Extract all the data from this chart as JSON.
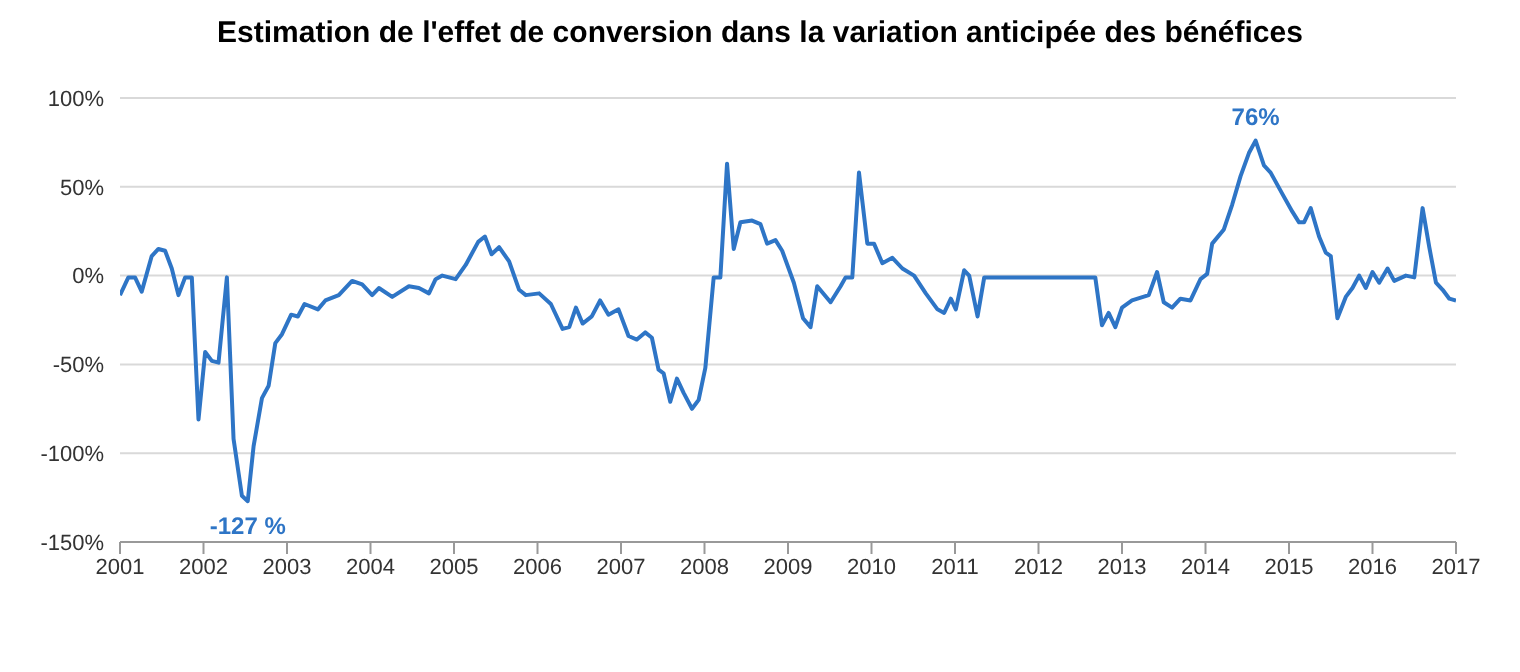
{
  "chart_data": {
    "type": "line",
    "title": "Estimation de l'effet de conversion dans la variation anticipée des bénéfices",
    "x": [
      2001.0,
      2001.1,
      2001.18,
      2001.26,
      2001.38,
      2001.46,
      2001.54,
      2001.62,
      2001.7,
      2001.78,
      2001.86,
      2001.94,
      2002.02,
      2002.1,
      2002.18,
      2002.28,
      2002.36,
      2002.46,
      2002.53,
      2002.6,
      2002.7,
      2002.78,
      2002.86,
      2002.94,
      2003.05,
      2003.13,
      2003.21,
      2003.37,
      2003.46,
      2003.62,
      2003.78,
      2003.9,
      2004.02,
      2004.1,
      2004.26,
      2004.46,
      2004.58,
      2004.7,
      2004.78,
      2004.86,
      2005.02,
      2005.14,
      2005.29,
      2005.37,
      2005.45,
      2005.54,
      2005.66,
      2005.78,
      2005.86,
      2006.02,
      2006.16,
      2006.3,
      2006.38,
      2006.46,
      2006.54,
      2006.65,
      2006.75,
      2006.85,
      2006.97,
      2007.09,
      2007.19,
      2007.29,
      2007.37,
      2007.45,
      2007.51,
      2007.59,
      2007.67,
      2007.75,
      2007.85,
      2007.93,
      2008.01,
      2008.11,
      2008.19,
      2008.27,
      2008.35,
      2008.43,
      2008.57,
      2008.67,
      2008.75,
      2008.85,
      2008.93,
      2009.07,
      2009.18,
      2009.27,
      2009.35,
      2009.51,
      2009.63,
      2009.69,
      2009.77,
      2009.85,
      2009.95,
      2010.03,
      2010.13,
      2010.25,
      2010.37,
      2010.51,
      2010.65,
      2010.79,
      2010.87,
      2010.95,
      2011.01,
      2011.11,
      2011.17,
      2011.27,
      2011.35,
      2012.68,
      2012.76,
      2012.84,
      2012.92,
      2013.0,
      2013.12,
      2013.32,
      2013.42,
      2013.5,
      2013.6,
      2013.7,
      2013.82,
      2013.94,
      2014.02,
      2014.08,
      2014.22,
      2014.32,
      2014.42,
      2014.52,
      2014.6,
      2014.7,
      2014.78,
      2014.92,
      2015.04,
      2015.12,
      2015.18,
      2015.26,
      2015.36,
      2015.44,
      2015.5,
      2015.58,
      2015.68,
      2015.76,
      2015.84,
      2015.92,
      2016.0,
      2016.08,
      2016.18,
      2016.26,
      2016.4,
      2016.5,
      2016.6,
      2016.68,
      2016.76,
      2016.84,
      2016.92,
      2017.0
    ],
    "series": [
      {
        "color": "#2e75c6",
        "values": [
          -11,
          -1,
          -1,
          -9,
          11,
          15,
          14,
          4,
          -11,
          -1,
          -1,
          -81,
          -43,
          -48,
          -49,
          -1,
          -92,
          -124,
          -127,
          -96,
          -69,
          -62,
          -38,
          -33,
          -22,
          -23,
          -16,
          -19,
          -14,
          -11,
          -3,
          -5,
          -11,
          -7,
          -12,
          -6,
          -7,
          -10,
          -2,
          0,
          -2,
          6,
          19,
          22,
          12,
          16,
          8,
          -8,
          -11,
          -10,
          -16,
          -30,
          -29,
          -18,
          -27,
          -23,
          -14,
          -22,
          -19,
          -34,
          -36,
          -32,
          -35,
          -53,
          -55,
          -71,
          -58,
          -66,
          -75,
          -70,
          -52,
          -1,
          -1,
          63,
          15,
          30,
          31,
          29,
          18,
          20,
          14,
          -4,
          -24,
          -29,
          -6,
          -15,
          -6,
          -1,
          -1,
          58,
          18,
          18,
          7,
          10,
          4,
          0,
          -10,
          -19,
          -21,
          -13,
          -19,
          3,
          0,
          -23,
          -1,
          -1,
          -28,
          -21,
          -29,
          -18,
          -14,
          -11,
          2,
          -15,
          -18,
          -13,
          -14,
          -2,
          1,
          18,
          26,
          40,
          56,
          69,
          76,
          62,
          58,
          46,
          36,
          30,
          30,
          38,
          22,
          13,
          11,
          -24,
          -12,
          -7,
          0,
          -7,
          2,
          -4,
          4,
          -3,
          0,
          -1,
          38,
          16,
          -4,
          -8,
          -13,
          -14
        ]
      }
    ],
    "xlim": [
      2001,
      2017
    ],
    "xticks": [
      2001,
      2002,
      2003,
      2004,
      2005,
      2006,
      2007,
      2008,
      2009,
      2010,
      2011,
      2012,
      2013,
      2014,
      2015,
      2016,
      2017
    ],
    "ylim": [
      -150,
      100
    ],
    "yticks": [
      {
        "value": -150,
        "label": "-150%"
      },
      {
        "value": -100,
        "label": "-100%"
      },
      {
        "value": -50,
        "label": "-50%"
      },
      {
        "value": 0,
        "label": "0%"
      },
      {
        "value": 50,
        "label": "50%"
      },
      {
        "value": 100,
        "label": "100%"
      }
    ],
    "grid": "y",
    "marker": "none",
    "line_style": "solid",
    "annotations": [
      {
        "text": "-127 %",
        "x": 2002.53,
        "y": -127
      },
      {
        "text": "76%",
        "x": 2014.6,
        "y": 76
      }
    ]
  }
}
